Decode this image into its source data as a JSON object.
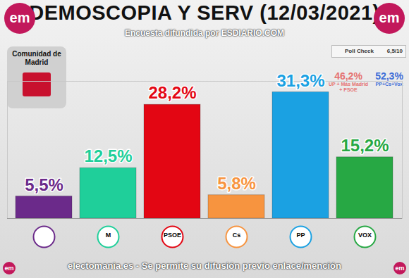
{
  "chart_data": {
    "type": "bar",
    "title": "DEMOSCOPIA Y SERV (12/03/2021)",
    "subtitle": "Encuesta difundida por ESDIARIO.COM",
    "caption": "electomania.es - Se permite su difusión previo enlace/mención",
    "logo": "em",
    "region": "Comunidad de Madrid",
    "poll_check": {
      "label": "Poll Check",
      "score": "6,5/10"
    },
    "blocs": [
      {
        "value_label": "46,2%",
        "name": "UP + Más Madrid + PSOE",
        "color": "#e57373"
      },
      {
        "value_label": "52,3%",
        "name": "PP+Cs+Vox",
        "color": "#3f6fd8"
      }
    ],
    "categories": [
      null,
      "M",
      "PSOE",
      "Cs",
      "PP",
      "VOX"
    ],
    "values": [
      5.5,
      12.5,
      28.2,
      5.8,
      31.3,
      15.2
    ],
    "value_labels": [
      "5,5%",
      "12,5%",
      "28,2%",
      "5,8%",
      "31,3%",
      "15,2%"
    ],
    "colors": [
      "#6b2a8a",
      "#1fcf9a",
      "#e30613",
      "#f7943f",
      "#1ba1e2",
      "#27a844"
    ],
    "ylim": [
      0,
      34
    ],
    "yticks": [],
    "data_labels": true,
    "tick_labels": "x",
    "grid": false
  }
}
